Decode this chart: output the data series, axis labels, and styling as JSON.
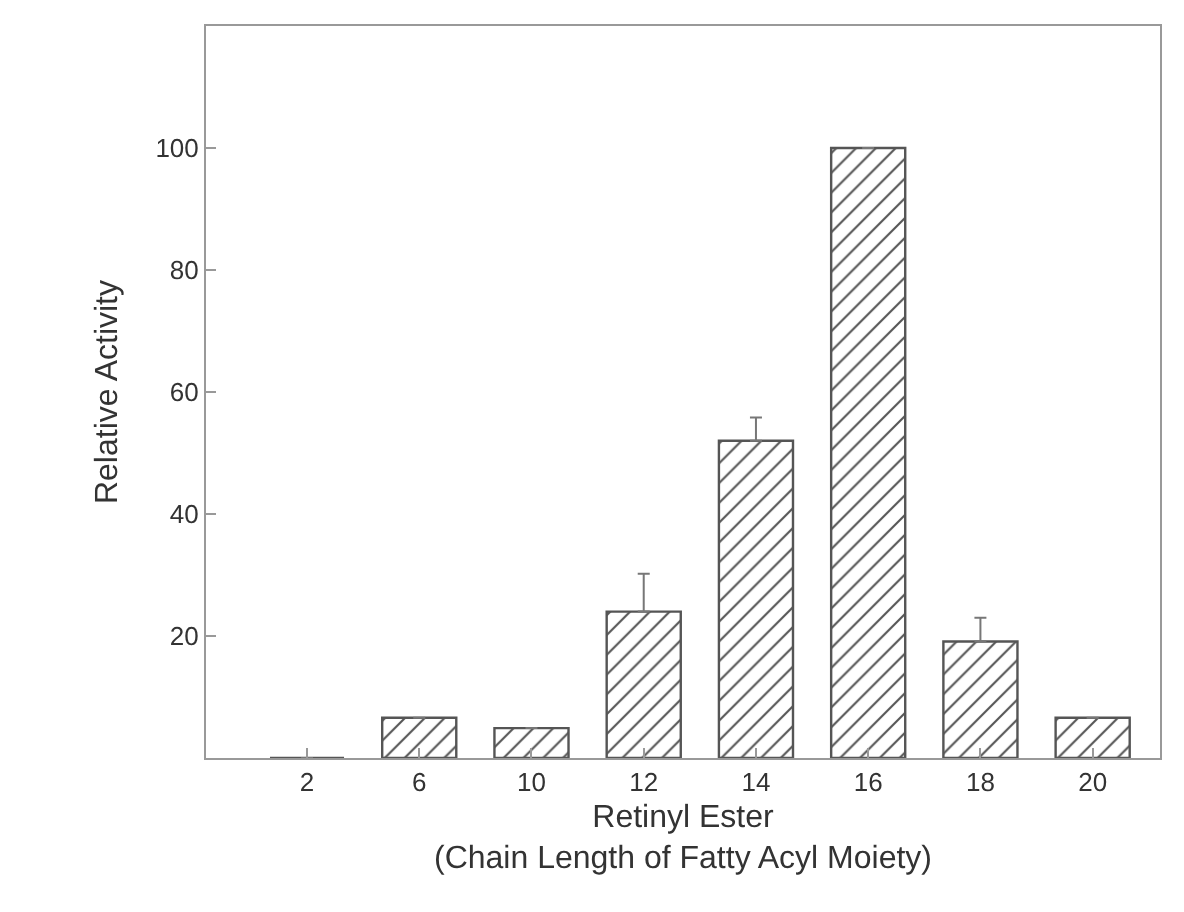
{
  "chart_data": {
    "type": "bar",
    "xlabel": "Retinyl Ester\n(Chain Length of Fatty Acyl Moiety)",
    "ylabel": "Relative Activity",
    "categories": [
      "2",
      "6",
      "10",
      "12",
      "14",
      "16",
      "18",
      "20"
    ],
    "values": [
      0,
      6.6,
      4.9,
      24,
      52,
      100,
      19.1,
      6.6
    ],
    "errors": [
      null,
      null,
      null,
      [
        24,
        30.2
      ],
      [
        52,
        55.8
      ],
      null,
      [
        19.1,
        23
      ],
      null
    ],
    "color": "#555555",
    "ylim": [
      0,
      120
    ],
    "yticks": [
      20,
      40,
      60,
      80,
      100
    ],
    "grid": false
  }
}
